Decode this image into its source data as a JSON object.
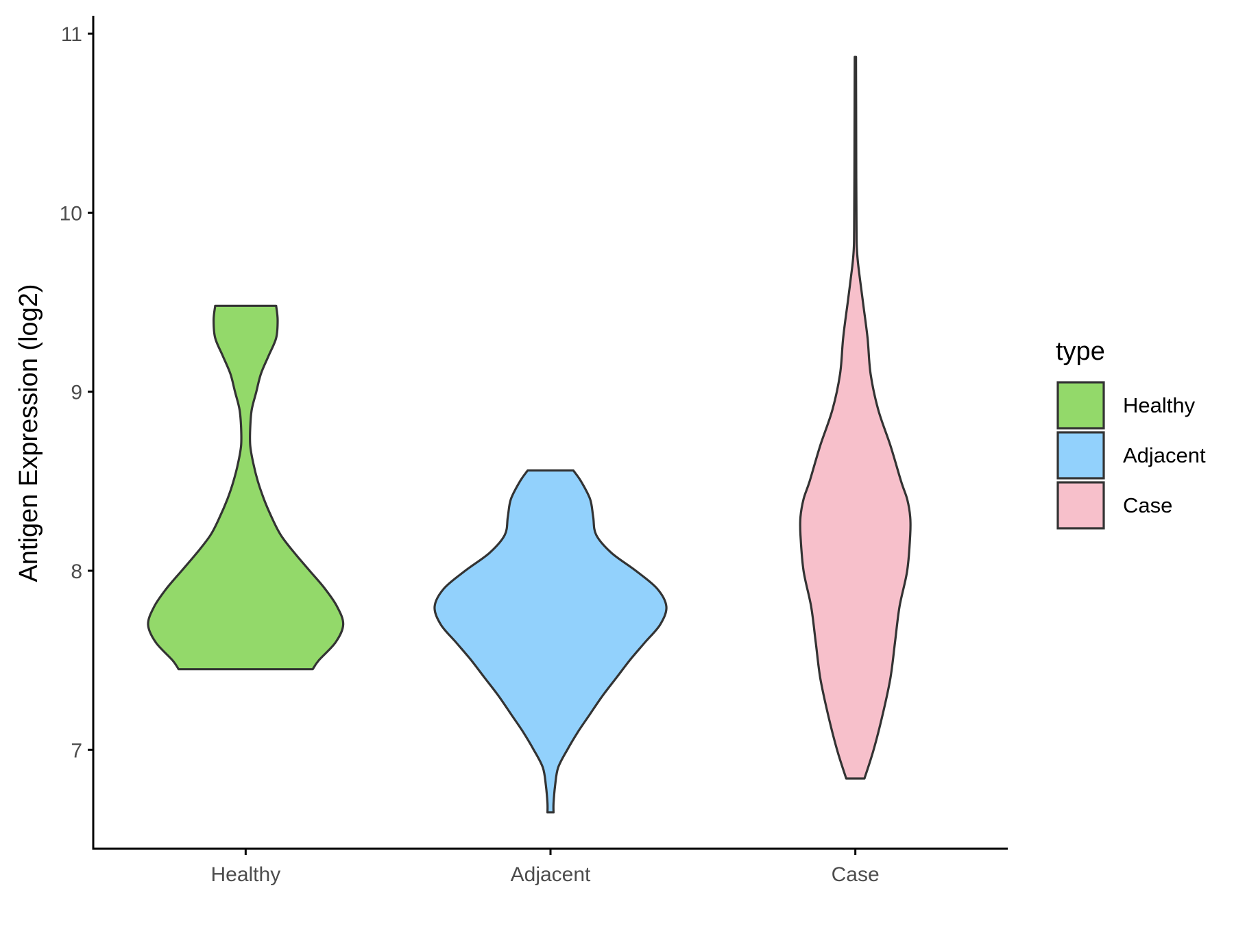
{
  "chart_data": {
    "type": "violin",
    "categories": [
      "Healthy",
      "Adjacent",
      "Case"
    ],
    "ylabel": "Antigen Expression (log2)",
    "xlabel": "",
    "ylim": [
      6.45,
      11.1
    ],
    "yticks": [
      7,
      8,
      9,
      10,
      11
    ],
    "grid": false,
    "legend": {
      "title": "type",
      "placement": "right",
      "entries": [
        "Healthy",
        "Adjacent",
        "Case"
      ]
    },
    "colors": {
      "Healthy": "#93d96a",
      "Adjacent": "#92d1fc",
      "Case": "#f7c0cb",
      "outline": "#333333"
    },
    "series": [
      {
        "name": "Healthy",
        "min": 7.45,
        "max": 9.48,
        "density": [
          [
            9.48,
            0.2
          ],
          [
            9.4,
            0.21
          ],
          [
            9.3,
            0.2
          ],
          [
            9.2,
            0.15
          ],
          [
            9.1,
            0.1
          ],
          [
            9.0,
            0.07
          ],
          [
            8.9,
            0.04
          ],
          [
            8.8,
            0.03
          ],
          [
            8.7,
            0.03
          ],
          [
            8.6,
            0.05
          ],
          [
            8.5,
            0.08
          ],
          [
            8.4,
            0.12
          ],
          [
            8.3,
            0.17
          ],
          [
            8.2,
            0.23
          ],
          [
            8.1,
            0.32
          ],
          [
            8.0,
            0.42
          ],
          [
            7.9,
            0.52
          ],
          [
            7.8,
            0.6
          ],
          [
            7.7,
            0.64
          ],
          [
            7.6,
            0.59
          ],
          [
            7.5,
            0.48
          ],
          [
            7.45,
            0.44
          ]
        ]
      },
      {
        "name": "Adjacent",
        "min": 6.65,
        "max": 8.56,
        "density": [
          [
            8.56,
            0.15
          ],
          [
            8.5,
            0.2
          ],
          [
            8.4,
            0.26
          ],
          [
            8.3,
            0.28
          ],
          [
            8.2,
            0.3
          ],
          [
            8.1,
            0.4
          ],
          [
            8.0,
            0.56
          ],
          [
            7.9,
            0.7
          ],
          [
            7.8,
            0.76
          ],
          [
            7.7,
            0.72
          ],
          [
            7.6,
            0.62
          ],
          [
            7.5,
            0.52
          ],
          [
            7.4,
            0.43
          ],
          [
            7.3,
            0.34
          ],
          [
            7.2,
            0.26
          ],
          [
            7.1,
            0.18
          ],
          [
            7.0,
            0.11
          ],
          [
            6.9,
            0.05
          ],
          [
            6.8,
            0.03
          ],
          [
            6.7,
            0.02
          ],
          [
            6.65,
            0.02
          ]
        ]
      },
      {
        "name": "Case",
        "min": 6.84,
        "max": 10.87,
        "density": [
          [
            10.87,
            0.004
          ],
          [
            10.6,
            0.005
          ],
          [
            10.2,
            0.006
          ],
          [
            9.9,
            0.008
          ],
          [
            9.8,
            0.01
          ],
          [
            9.7,
            0.02
          ],
          [
            9.5,
            0.05
          ],
          [
            9.3,
            0.08
          ],
          [
            9.1,
            0.1
          ],
          [
            8.9,
            0.15
          ],
          [
            8.7,
            0.23
          ],
          [
            8.5,
            0.3
          ],
          [
            8.4,
            0.34
          ],
          [
            8.3,
            0.36
          ],
          [
            8.2,
            0.36
          ],
          [
            8.0,
            0.34
          ],
          [
            7.8,
            0.29
          ],
          [
            7.6,
            0.26
          ],
          [
            7.4,
            0.23
          ],
          [
            7.2,
            0.18
          ],
          [
            7.0,
            0.12
          ],
          [
            6.84,
            0.06
          ]
        ]
      }
    ]
  }
}
